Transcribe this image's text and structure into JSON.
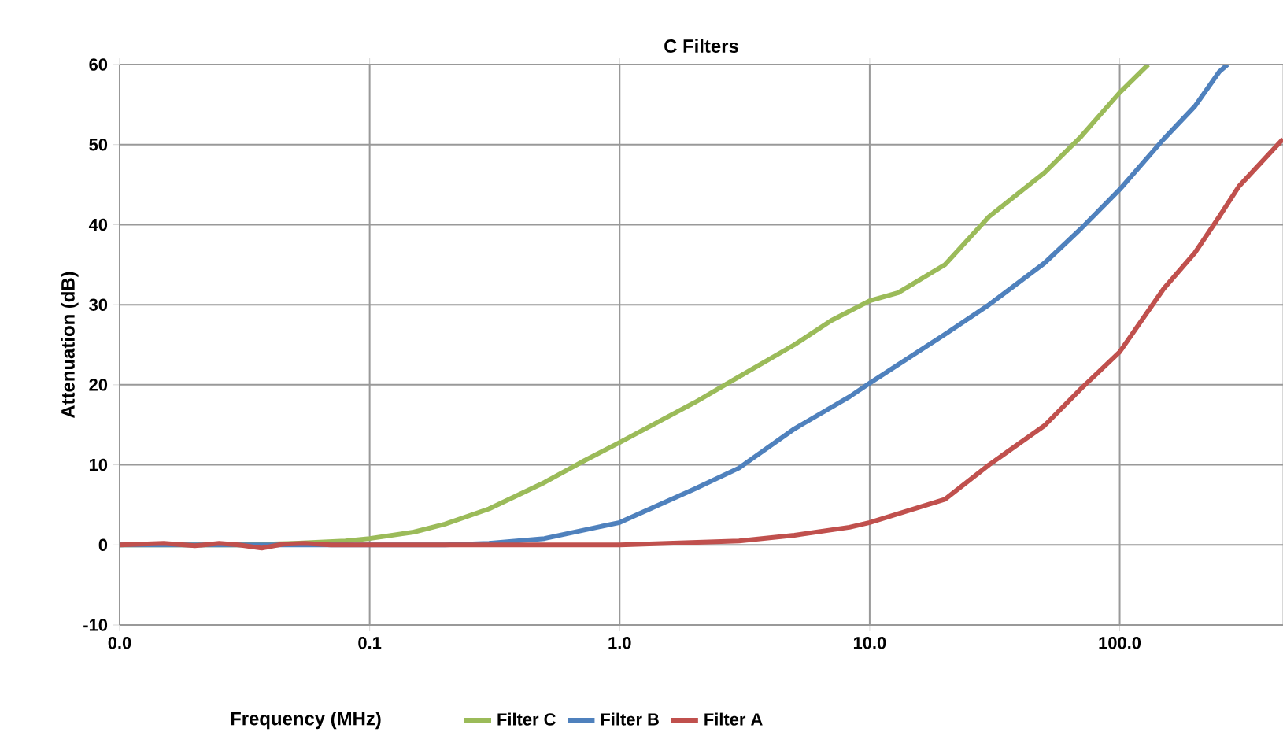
{
  "chart_data": {
    "type": "line",
    "title": "C Filters",
    "xlabel": "Frequency (MHz)",
    "ylabel": "Attenuation (dB)",
    "log": "x",
    "grid": true,
    "legend": "bottom",
    "xlim": [
      0.01,
      450
    ],
    "ylim": [
      -10,
      60
    ],
    "xticks": [
      {
        "value": 0.01,
        "label": "0.0"
      },
      {
        "value": 0.1,
        "label": "0.1"
      },
      {
        "value": 1,
        "label": "1.0"
      },
      {
        "value": 10,
        "label": "10.0"
      },
      {
        "value": 100,
        "label": "100.0"
      }
    ],
    "yticks": [
      -10,
      0,
      10,
      20,
      30,
      40,
      50,
      60
    ],
    "series": [
      {
        "name": "Filter C",
        "color": "#9bbb59",
        "x": [
          0.01,
          0.02,
          0.03,
          0.05,
          0.08,
          0.1,
          0.15,
          0.2,
          0.3,
          0.5,
          0.7,
          1,
          2,
          3,
          5,
          7,
          10,
          13,
          20,
          30,
          50,
          70,
          100,
          130
        ],
        "values": [
          0,
          0,
          0,
          0.2,
          0.5,
          0.8,
          1.6,
          2.6,
          4.5,
          7.8,
          10.3,
          12.8,
          17.8,
          21,
          25,
          28,
          30.5,
          31.5,
          35,
          41,
          46.5,
          51,
          56.5,
          60
        ]
      },
      {
        "name": "Filter B",
        "color": "#4f81bd",
        "x": [
          0.01,
          0.02,
          0.05,
          0.1,
          0.2,
          0.3,
          0.5,
          1,
          2,
          3,
          5,
          8.3,
          10,
          20,
          30,
          50,
          70,
          100,
          150,
          200,
          250,
          270
        ],
        "values": [
          0,
          0,
          0,
          0,
          0,
          0.2,
          0.8,
          2.8,
          7,
          9.6,
          14.5,
          18.5,
          20.2,
          26.3,
          30,
          35.2,
          39.5,
          44.4,
          50.7,
          54.8,
          59.1,
          60
        ]
      },
      {
        "name": "Filter A",
        "color": "#c0504d",
        "x": [
          0.01,
          0.015,
          0.02,
          0.025,
          0.03,
          0.037,
          0.045,
          0.055,
          0.07,
          0.1,
          0.3,
          1,
          3,
          5,
          8.3,
          10,
          20,
          30,
          50,
          70,
          100,
          150,
          200,
          250,
          300,
          450
        ],
        "values": [
          0,
          0.2,
          -0.1,
          0.2,
          0,
          -0.4,
          0.1,
          0.2,
          0,
          0,
          0,
          0,
          0.5,
          1.2,
          2.2,
          2.8,
          5.7,
          10,
          14.9,
          19.5,
          24.1,
          32,
          36.5,
          41,
          44.8,
          50.7
        ]
      }
    ]
  }
}
